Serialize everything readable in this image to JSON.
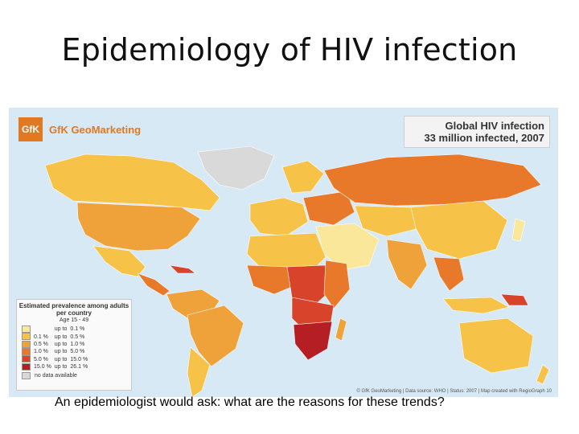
{
  "slide": {
    "title": "Epidemiology of HIV infection",
    "caption": "An epidemiologist would ask: what are the reasons for these trends?"
  },
  "map": {
    "brand_logo": "GfK",
    "brand_text": "GfK GeoMarketing",
    "title_line1": "Global HIV infection",
    "title_line2": "33 million infected, 2007",
    "credit": "© GfK GeoMarketing | Data source: WHO | Status: 2007 | Map created with RegioGraph 10",
    "colors": {
      "ocean": "#d7e9f4",
      "no_data": "#d9d9d9"
    }
  },
  "legend": {
    "title": "Estimated prevalence among adults per country",
    "subtitle": "Age 15 - 49",
    "rows": [
      {
        "from": "",
        "sep": "up to",
        "to": "0.1 %",
        "color": "#fbe79a"
      },
      {
        "from": "0.1 %",
        "sep": "up to",
        "to": "0.5 %",
        "color": "#f7c248"
      },
      {
        "from": "0.5 %",
        "sep": "up to",
        "to": "1.0 %",
        "color": "#f0a23a"
      },
      {
        "from": "1.0 %",
        "sep": "up to",
        "to": "5.0 %",
        "color": "#e8782a"
      },
      {
        "from": "5.0 %",
        "sep": "up to",
        "to": "15.0 %",
        "color": "#d8432b"
      },
      {
        "from": "15.0 %",
        "sep": "up to",
        "to": "26.1 %",
        "color": "#b51f24"
      }
    ],
    "no_data_label": "no data available"
  }
}
